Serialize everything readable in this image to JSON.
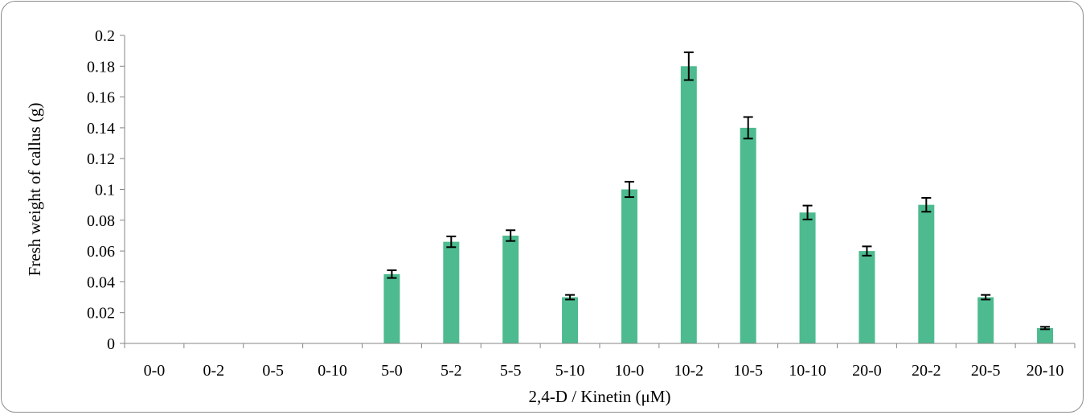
{
  "chart_data": {
    "type": "bar",
    "title": "",
    "xlabel": "2,4-D / Kinetin (μM)",
    "ylabel": "Fresh weight of callus (g)",
    "ylim": [
      0,
      0.2
    ],
    "y_ticks": [
      "0",
      "0.02",
      "0.04",
      "0.06",
      "0.08",
      "0.1",
      "0.12",
      "0.14",
      "0.16",
      "0.18",
      "0.2"
    ],
    "grid": false,
    "legend": "none",
    "categories": [
      "0-0",
      "0-2",
      "0-5",
      "0-10",
      "5-0",
      "5-2",
      "5-5",
      "5-10",
      "10-0",
      "10-2",
      "10-5",
      "10-10",
      "20-0",
      "20-2",
      "20-5",
      "20-10"
    ],
    "values": [
      0,
      0,
      0,
      0,
      0.045,
      0.066,
      0.07,
      0.03,
      0.1,
      0.18,
      0.14,
      0.085,
      0.06,
      0.09,
      0.03,
      0.01
    ],
    "errors": [
      0,
      0,
      0,
      0,
      0.0025,
      0.0035,
      0.0035,
      0.0015,
      0.005,
      0.009,
      0.007,
      0.0045,
      0.003,
      0.0045,
      0.0015,
      0.0008
    ],
    "colors": {
      "bar": "#4dbb8f",
      "axis": "#868686",
      "error": "#000000"
    }
  }
}
